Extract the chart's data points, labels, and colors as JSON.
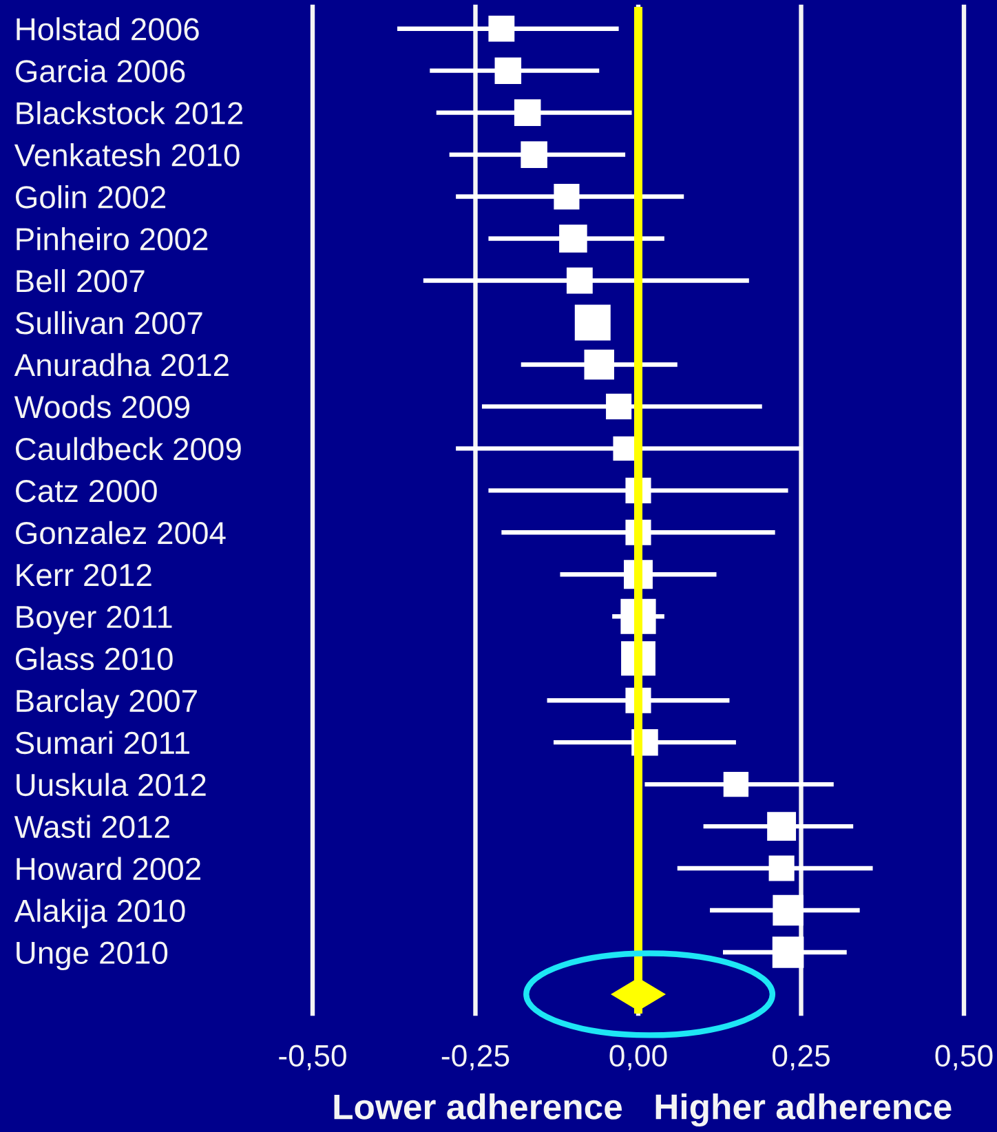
{
  "chart_data": {
    "type": "bubble",
    "orientation": "horizontal",
    "categories": [
      "Holstad 2006",
      "Garcia 2006",
      "Blackstock 2012",
      "Venkatesh 2010",
      "Golin 2002",
      "Pinheiro 2002",
      "Bell 2007",
      "Sullivan 2007",
      "Anuradha 2012",
      "Woods 2009",
      "Cauldbeck 2009",
      "Catz 2000",
      "Gonzalez 2004",
      "Kerr 2012",
      "Boyer 2011",
      "Glass 2010",
      "Barclay 2007",
      "Sumari 2011",
      "Uuskula 2012",
      "Wasti 2012",
      "Howard 2002",
      "Alakija 2010",
      "Unge 2010",
      null
    ],
    "series": [
      {
        "color": "#ffffff",
        "marker": "square",
        "values": [
          -0.21,
          -0.2,
          -0.17,
          -0.16,
          -0.11,
          -0.1,
          -0.09,
          -0.07,
          -0.06,
          -0.03,
          -0.02,
          0.0,
          0.0,
          0.0,
          0.0,
          0.0,
          0.0,
          0.01,
          0.15,
          0.22,
          0.22,
          0.23,
          0.23,
          null
        ],
        "errors": [
          [
            -0.37,
            -0.03
          ],
          [
            -0.32,
            -0.06
          ],
          [
            -0.31,
            -0.01
          ],
          [
            -0.29,
            -0.02
          ],
          [
            -0.28,
            0.07
          ],
          [
            -0.23,
            0.04
          ],
          [
            -0.33,
            0.17
          ],
          null,
          [
            -0.18,
            0.06
          ],
          [
            -0.24,
            0.19
          ],
          [
            -0.28,
            0.25
          ],
          [
            -0.23,
            0.23
          ],
          [
            -0.21,
            0.21
          ],
          [
            -0.12,
            0.12
          ],
          [
            -0.04,
            0.04
          ],
          null,
          [
            -0.14,
            0.14
          ],
          [
            -0.13,
            0.15
          ],
          [
            0.01,
            0.3
          ],
          [
            0.1,
            0.33
          ],
          [
            0.06,
            0.36
          ],
          [
            0.11,
            0.34
          ],
          [
            0.13,
            0.32
          ],
          null
        ],
        "sizes": [
          0.53,
          0.55,
          0.55,
          0.55,
          0.51,
          0.61,
          0.53,
          1,
          0.7,
          0.51,
          0.46,
          0.51,
          0.51,
          0.65,
          0.97,
          0.92,
          0.51,
          0.55,
          0.49,
          0.65,
          0.51,
          0.73,
          0.77,
          null
        ]
      },
      {
        "type": "scatter",
        "color": "#ffff00",
        "marker": "diamond",
        "values": [
          null,
          null,
          null,
          null,
          null,
          null,
          null,
          null,
          null,
          null,
          null,
          null,
          null,
          null,
          null,
          null,
          null,
          null,
          null,
          null,
          null,
          null,
          null,
          0.0
        ]
      }
    ],
    "xlim": [
      -0.5,
      0.5
    ],
    "xticks": [
      {
        "value": -0.5,
        "label": "-0,50"
      },
      {
        "value": -0.25,
        "label": "-0,25"
      },
      {
        "value": 0,
        "label": "0,00"
      },
      {
        "value": 0.25,
        "label": "0,25"
      },
      {
        "value": 0.5,
        "label": "0,50"
      }
    ],
    "grid": "x",
    "ref_lines": [
      {
        "axis": "x",
        "value": 0,
        "color": "#ffff00",
        "line_style": "solid"
      }
    ],
    "annotations": [
      "Lower adherence",
      "Higher adherence"
    ]
  }
}
